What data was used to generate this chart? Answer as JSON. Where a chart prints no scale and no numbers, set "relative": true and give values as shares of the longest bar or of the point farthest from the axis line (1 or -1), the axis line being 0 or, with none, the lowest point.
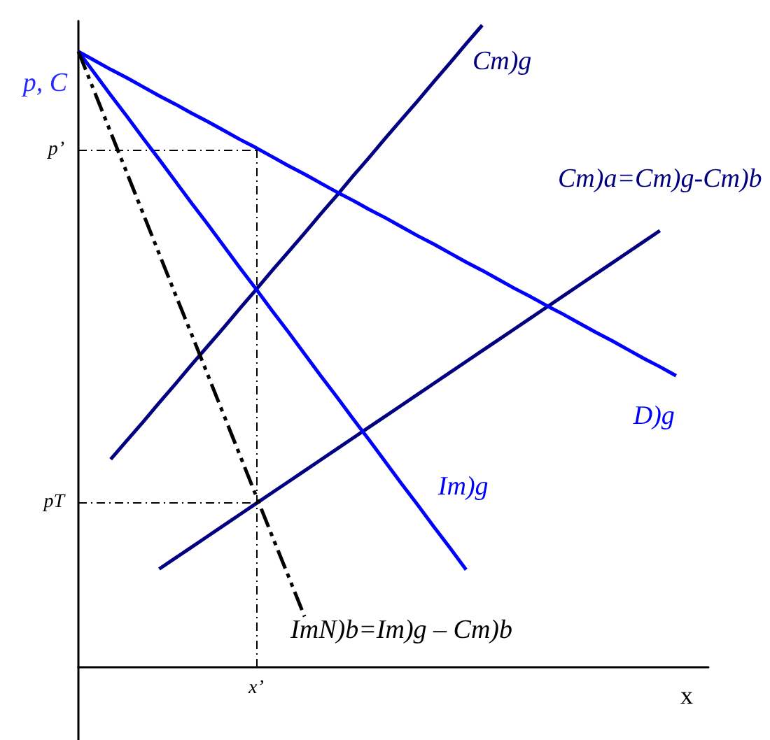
{
  "chart_data": {
    "type": "line",
    "relative": true,
    "xlabel": "x",
    "ylabel": "p, C",
    "grid": false,
    "legend": false,
    "categories": [
      null,
      null,
      null,
      null,
      null,
      null,
      null,
      null,
      null,
      null,
      null,
      null,
      null,
      null,
      null,
      null,
      null,
      null,
      null,
      null,
      null,
      null,
      null,
      null,
      null,
      null,
      null,
      null,
      null,
      null,
      null,
      null,
      null,
      null,
      null,
      null,
      null,
      null,
      null,
      null
    ],
    "series": [
      {
        "name": "Cm)g",
        "color": "#000080",
        "values": [
          null,
          null,
          0.324,
          0.353,
          0.382,
          0.412,
          0.441,
          0.471,
          0.5,
          0.529,
          0.559,
          0.588,
          0.618,
          0.647,
          0.676,
          0.706,
          0.735,
          0.765,
          0.794,
          0.824,
          0.853,
          0.882,
          0.912,
          0.941,
          0.971,
          1.0,
          null,
          null,
          null,
          null,
          null,
          null,
          null,
          null,
          null,
          null,
          null,
          null,
          null,
          null
        ]
      },
      {
        "name": "Cm)a=Cm)g-Cm)b",
        "color": "#000080",
        "values": [
          null,
          null,
          null,
          null,
          null,
          0.153,
          0.17,
          0.187,
          0.204,
          0.221,
          0.238,
          0.255,
          0.272,
          0.289,
          0.306,
          0.323,
          0.34,
          0.357,
          0.374,
          0.391,
          0.408,
          0.425,
          0.442,
          0.459,
          0.476,
          0.493,
          0.51,
          0.527,
          0.544,
          0.561,
          0.578,
          0.595,
          0.612,
          0.629,
          0.646,
          0.663,
          0.68,
          null,
          null,
          null
        ]
      },
      {
        "name": "D)g",
        "color": "#0000ff",
        "values": [
          0.959,
          0.945,
          0.931,
          0.918,
          0.904,
          0.89,
          0.877,
          0.863,
          0.85,
          0.836,
          0.822,
          0.809,
          0.795,
          0.781,
          0.768,
          0.754,
          0.74,
          0.727,
          0.713,
          0.7,
          0.686,
          0.672,
          0.659,
          0.645,
          0.631,
          0.618,
          0.604,
          0.59,
          0.577,
          0.563,
          0.55,
          0.536,
          0.522,
          0.509,
          0.495,
          0.481,
          0.468,
          0.454,
          null,
          null
        ]
      },
      {
        "name": "Im)g",
        "color": "#0000ff",
        "values": [
          0.959,
          0.925,
          0.891,
          0.858,
          0.824,
          0.791,
          0.757,
          0.723,
          0.69,
          0.656,
          0.622,
          0.589,
          0.555,
          0.522,
          0.488,
          0.454,
          0.421,
          0.387,
          0.354,
          0.32,
          0.286,
          0.253,
          0.219,
          0.186,
          0.152,
          null,
          null,
          null,
          null,
          null,
          null,
          null,
          null,
          null,
          null,
          null,
          null,
          null,
          null,
          null
        ]
      },
      {
        "name": "ImN)b=Im)g – Cm)b",
        "color": "#000000",
        "line_style": "dashed",
        "values": [
          0.959,
          0.896,
          0.833,
          0.77,
          0.707,
          0.644,
          0.581,
          0.519,
          0.456,
          0.393,
          0.33,
          0.267,
          0.204,
          0.142,
          0.079,
          null,
          null,
          null,
          null,
          null,
          null,
          null,
          null,
          null,
          null,
          null,
          null,
          null,
          null,
          null,
          null,
          null,
          null,
          null,
          null,
          null,
          null,
          null,
          null,
          null
        ]
      }
    ],
    "ref_lines": [
      {
        "axis": "y",
        "value": 0.806,
        "label": "p’",
        "color": "#000000",
        "line_style": "dashed"
      },
      {
        "axis": "y",
        "value": 0.257,
        "label": "pT",
        "color": "#000000",
        "line_style": "dashed"
      }
    ],
    "annotations": [
      "x’"
    ]
  }
}
